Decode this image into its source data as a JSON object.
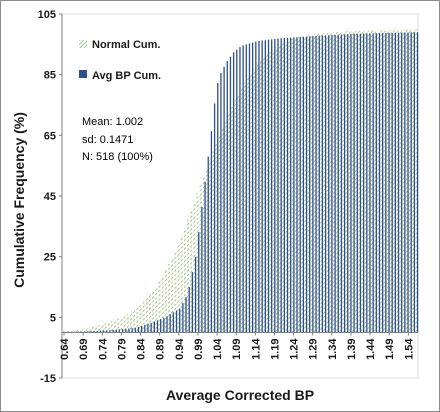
{
  "chart_data": {
    "type": "bar",
    "xlabel": "Average Corrected  BP",
    "ylabel": "Cumulative Frequency (%)",
    "ylim": [
      -15,
      105
    ],
    "y_ticks": [
      105,
      85,
      65,
      45,
      25,
      5,
      -15
    ],
    "xlim": [
      0.64,
      1.56
    ],
    "x_tick_labels": [
      "0.64",
      "0.69",
      "0.74",
      "0.79",
      "0.84",
      "0.89",
      "0.94",
      "0.99",
      "1.04",
      "1.09",
      "1.14",
      "1.19",
      "1.24",
      "1.29",
      "1.34",
      "1.39",
      "1.44",
      "1.49",
      "1.54"
    ],
    "legend_position": "top-left",
    "grid": false,
    "series": [
      {
        "name": "Normal Cum.",
        "color": "#8fb36b",
        "style": "hatched",
        "points": [
          [
            0.64,
            0.5
          ],
          [
            0.68,
            1.0
          ],
          [
            0.72,
            2.0
          ],
          [
            0.76,
            3.5
          ],
          [
            0.8,
            5.5
          ],
          [
            0.84,
            9.0
          ],
          [
            0.88,
            15.0
          ],
          [
            0.92,
            24.0
          ],
          [
            0.96,
            36.0
          ],
          [
            1.0,
            50.0
          ],
          [
            1.04,
            63.0
          ],
          [
            1.08,
            75.0
          ],
          [
            1.12,
            84.0
          ],
          [
            1.16,
            90.5
          ],
          [
            1.2,
            94.5
          ],
          [
            1.24,
            97.0
          ],
          [
            1.3,
            98.5
          ],
          [
            1.4,
            99.5
          ],
          [
            1.56,
            99.8
          ]
        ]
      },
      {
        "name": "Avg BP Cum.",
        "color": "#2e4f8f",
        "style": "solid",
        "points": [
          [
            0.64,
            0.2
          ],
          [
            0.7,
            0.4
          ],
          [
            0.76,
            0.8
          ],
          [
            0.82,
            1.5
          ],
          [
            0.86,
            3.0
          ],
          [
            0.9,
            5.0
          ],
          [
            0.94,
            8.0
          ],
          [
            0.96,
            13.0
          ],
          [
            0.98,
            25.0
          ],
          [
            1.0,
            45.0
          ],
          [
            1.02,
            65.0
          ],
          [
            1.03,
            76.0
          ],
          [
            1.04,
            84.0
          ],
          [
            1.06,
            89.0
          ],
          [
            1.08,
            92.5
          ],
          [
            1.1,
            94.5
          ],
          [
            1.14,
            96.0
          ],
          [
            1.2,
            97.0
          ],
          [
            1.3,
            97.8
          ],
          [
            1.4,
            98.5
          ],
          [
            1.56,
            99.0
          ]
        ]
      }
    ]
  },
  "legend": {
    "normal_label": "Normal Cum.",
    "avg_label": "Avg BP Cum."
  },
  "stats": {
    "mean": "Mean:  1.002",
    "sd": "sd: 0.1471",
    "n": "N: 518 (100%)"
  }
}
